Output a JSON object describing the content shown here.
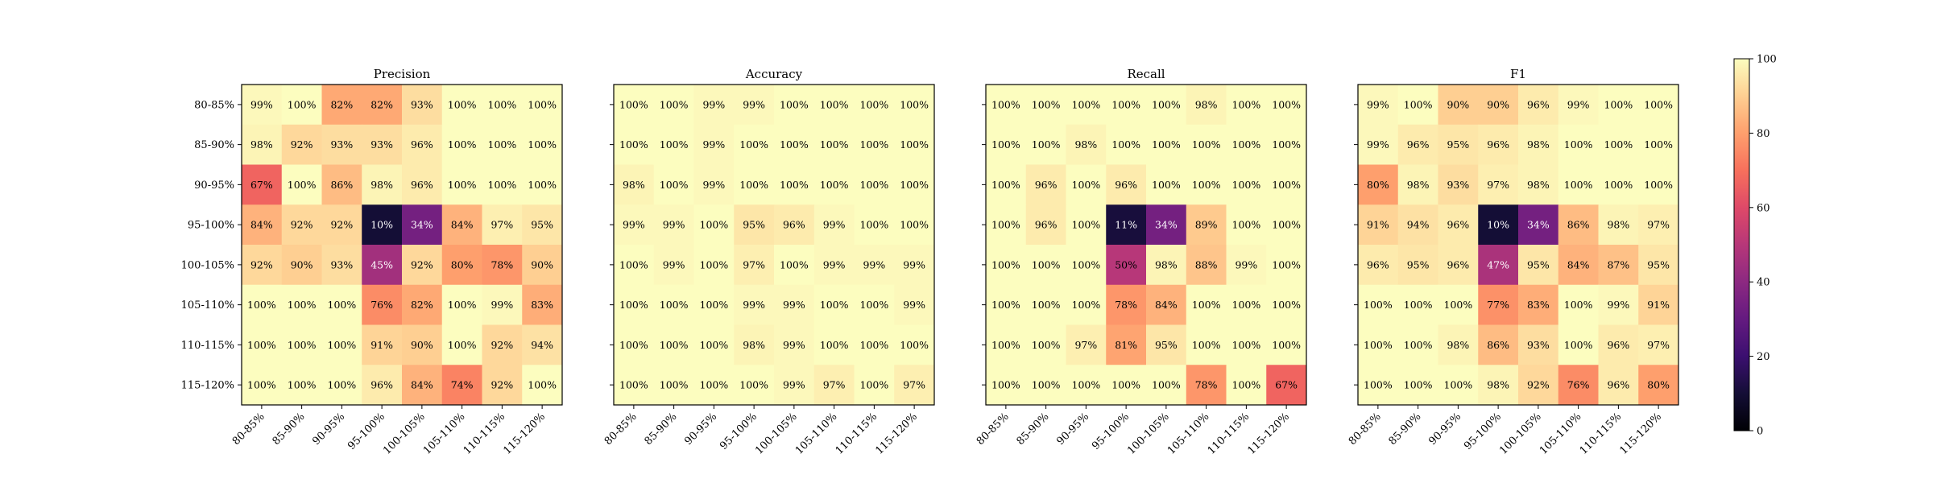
{
  "chart_data": [
    {
      "type": "heatmap",
      "title": "Precision",
      "row_labels": [
        "80-85%",
        "85-90%",
        "90-95%",
        "95-100%",
        "100-105%",
        "105-110%",
        "110-115%",
        "115-120%"
      ],
      "col_labels": [
        "80-85%",
        "85-90%",
        "90-95%",
        "95-100%",
        "100-105%",
        "105-110%",
        "110-115%",
        "115-120%"
      ],
      "values": [
        [
          99,
          100,
          82,
          82,
          93,
          100,
          100,
          100
        ],
        [
          98,
          92,
          93,
          93,
          96,
          100,
          100,
          100
        ],
        [
          67,
          100,
          86,
          98,
          96,
          100,
          100,
          100
        ],
        [
          84,
          92,
          92,
          10,
          34,
          84,
          97,
          95
        ],
        [
          92,
          90,
          93,
          45,
          92,
          80,
          78,
          90
        ],
        [
          100,
          100,
          100,
          76,
          82,
          100,
          99,
          83
        ],
        [
          100,
          100,
          100,
          91,
          90,
          100,
          92,
          94
        ],
        [
          100,
          100,
          100,
          96,
          84,
          74,
          92,
          100
        ]
      ],
      "value_suffix": "%",
      "vmin": 0,
      "vmax": 100
    },
    {
      "type": "heatmap",
      "title": "Accuracy",
      "row_labels": [],
      "col_labels": [
        "80-85%",
        "85-90%",
        "90-95%",
        "95-100%",
        "100-105%",
        "105-110%",
        "110-115%",
        "115-120%"
      ],
      "values": [
        [
          100,
          100,
          99,
          99,
          100,
          100,
          100,
          100
        ],
        [
          100,
          100,
          99,
          100,
          100,
          100,
          100,
          100
        ],
        [
          98,
          100,
          99,
          100,
          100,
          100,
          100,
          100
        ],
        [
          99,
          99,
          100,
          95,
          96,
          99,
          100,
          100
        ],
        [
          100,
          99,
          100,
          97,
          100,
          99,
          99,
          99
        ],
        [
          100,
          100,
          100,
          99,
          99,
          100,
          100,
          99
        ],
        [
          100,
          100,
          100,
          98,
          99,
          100,
          100,
          100
        ],
        [
          100,
          100,
          100,
          100,
          99,
          97,
          100,
          97
        ]
      ],
      "value_suffix": "%",
      "vmin": 0,
      "vmax": 100
    },
    {
      "type": "heatmap",
      "title": "Recall",
      "row_labels": [],
      "col_labels": [
        "80-85%",
        "85-90%",
        "90-95%",
        "95-100%",
        "100-105%",
        "105-110%",
        "110-115%",
        "115-120%"
      ],
      "values": [
        [
          100,
          100,
          100,
          100,
          100,
          98,
          100,
          100
        ],
        [
          100,
          100,
          98,
          100,
          100,
          100,
          100,
          100
        ],
        [
          100,
          96,
          100,
          96,
          100,
          100,
          100,
          100
        ],
        [
          100,
          96,
          100,
          11,
          34,
          89,
          100,
          100
        ],
        [
          100,
          100,
          100,
          50,
          98,
          88,
          99,
          100
        ],
        [
          100,
          100,
          100,
          78,
          84,
          100,
          100,
          100
        ],
        [
          100,
          100,
          97,
          81,
          95,
          100,
          100,
          100
        ],
        [
          100,
          100,
          100,
          100,
          100,
          78,
          100,
          67
        ]
      ],
      "value_suffix": "%",
      "vmin": 0,
      "vmax": 100
    },
    {
      "type": "heatmap",
      "title": "F1",
      "row_labels": [],
      "col_labels": [
        "80-85%",
        "85-90%",
        "90-95%",
        "95-100%",
        "100-105%",
        "105-110%",
        "110-115%",
        "115-120%"
      ],
      "values": [
        [
          99,
          100,
          90,
          90,
          96,
          99,
          100,
          100
        ],
        [
          99,
          96,
          95,
          96,
          98,
          100,
          100,
          100
        ],
        [
          80,
          98,
          93,
          97,
          98,
          100,
          100,
          100
        ],
        [
          91,
          94,
          96,
          10,
          34,
          86,
          98,
          97
        ],
        [
          96,
          95,
          96,
          47,
          95,
          84,
          87,
          95
        ],
        [
          100,
          100,
          100,
          77,
          83,
          100,
          99,
          91
        ],
        [
          100,
          100,
          98,
          86,
          93,
          100,
          96,
          97
        ],
        [
          100,
          100,
          100,
          98,
          92,
          76,
          96,
          80
        ]
      ],
      "value_suffix": "%",
      "vmin": 0,
      "vmax": 100
    }
  ],
  "colorbar": {
    "colormap": "magma",
    "ticks": [
      "0",
      "20",
      "40",
      "60",
      "80",
      "100"
    ],
    "tick_values": [
      0,
      20,
      40,
      60,
      80,
      100
    ]
  }
}
